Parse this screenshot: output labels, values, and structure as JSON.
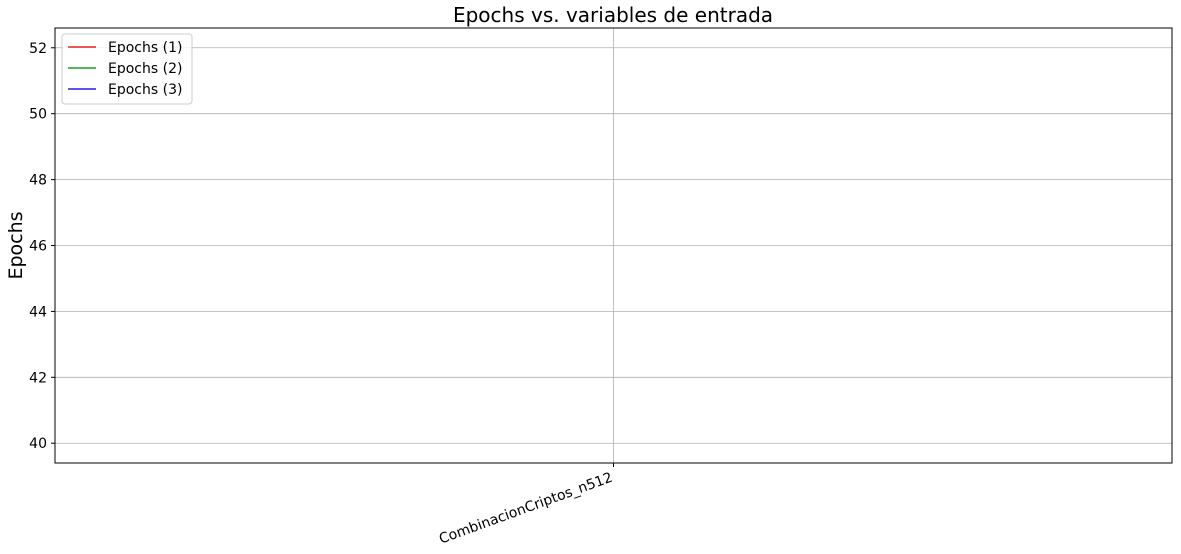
{
  "chart_data": {
    "type": "line",
    "title": "Epochs vs. variables de entrada",
    "xlabel": "",
    "ylabel": "Epochs",
    "categories": [
      "CombinacionCriptos_n512"
    ],
    "yticks": [
      40,
      42,
      44,
      46,
      48,
      50,
      52
    ],
    "ylim": [
      39.4,
      52.6
    ],
    "grid": true,
    "legend_position": "top-left",
    "series": [
      {
        "name": "Epochs (1)",
        "color": "#e8231d",
        "values": [
          null
        ]
      },
      {
        "name": "Epochs (2)",
        "color": "#1e9c23",
        "values": [
          null
        ]
      },
      {
        "name": "Epochs (3)",
        "color": "#2121e0",
        "values": [
          null
        ]
      }
    ]
  }
}
